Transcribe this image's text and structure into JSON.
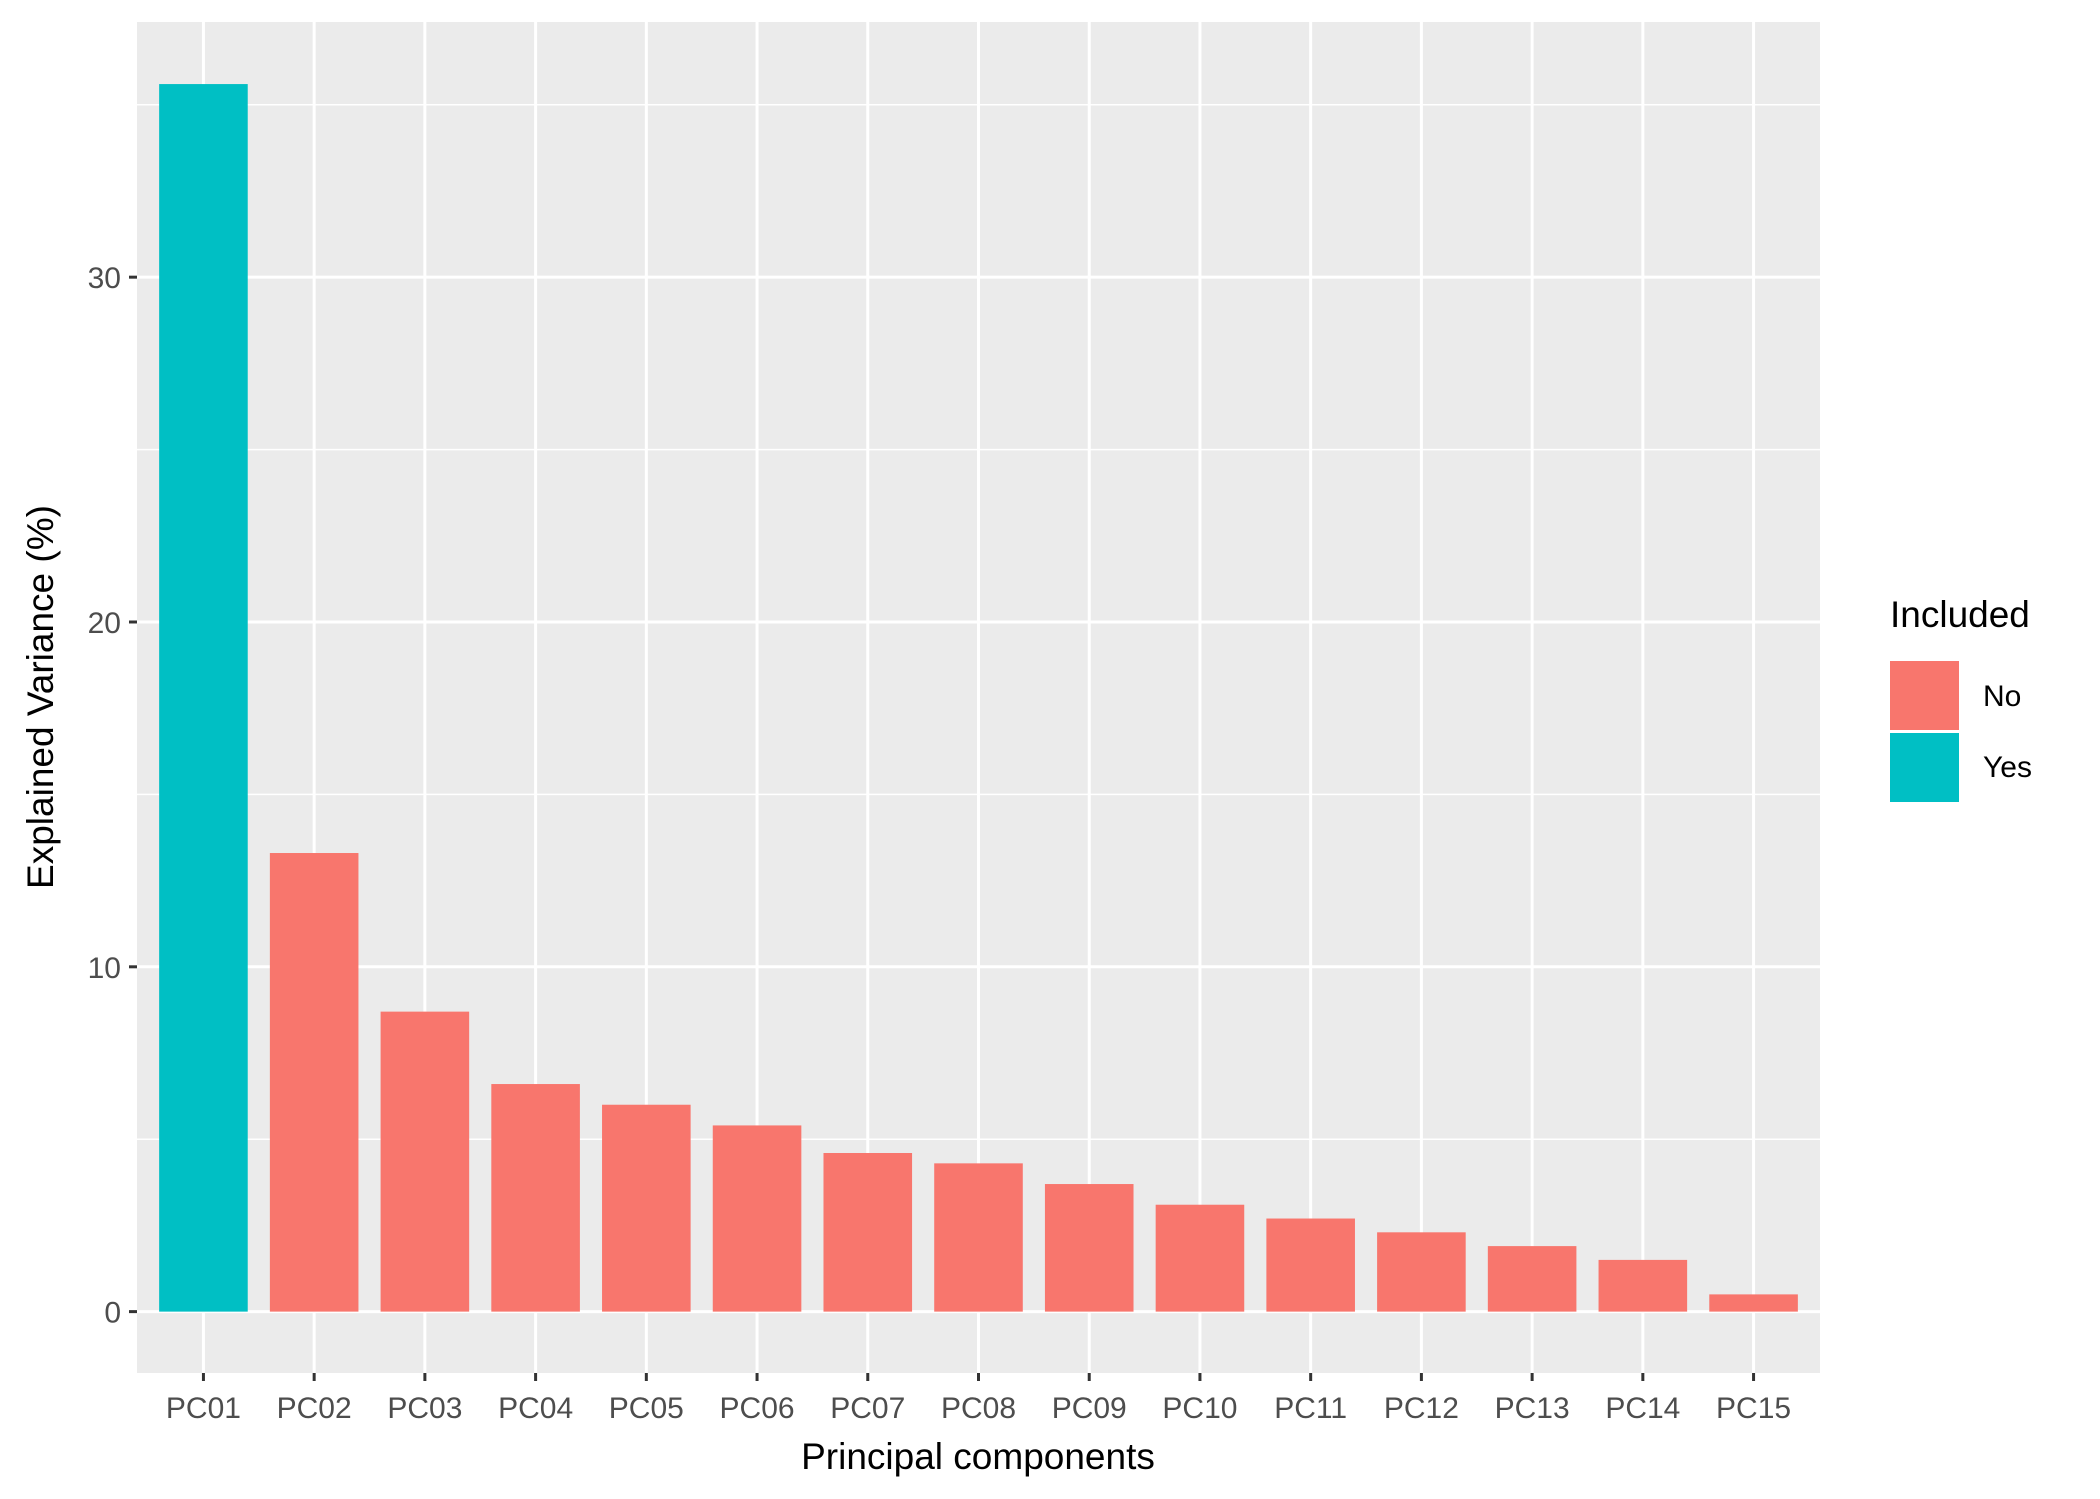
{
  "chart_data": {
    "type": "bar",
    "title": "",
    "xlabel": "Principal components",
    "ylabel": "Explained Variance (%)",
    "categories": [
      "PC01",
      "PC02",
      "PC03",
      "PC04",
      "PC05",
      "PC06",
      "PC07",
      "PC08",
      "PC09",
      "PC10",
      "PC11",
      "PC12",
      "PC13",
      "PC14",
      "PC15"
    ],
    "values": [
      35.6,
      13.3,
      8.7,
      6.6,
      6.0,
      5.4,
      4.6,
      4.3,
      3.7,
      3.1,
      2.7,
      2.3,
      1.9,
      1.5,
      0.5
    ],
    "included": [
      "Yes",
      "No",
      "No",
      "No",
      "No",
      "No",
      "No",
      "No",
      "No",
      "No",
      "No",
      "No",
      "No",
      "No",
      "No"
    ],
    "ylim": [
      -1.78,
      37.4
    ],
    "yticks": [
      0,
      10,
      20,
      30
    ],
    "ytick_labels": [
      "0",
      "10",
      "20",
      "30"
    ],
    "grid": true,
    "legend": {
      "title": "Included",
      "placement": "right",
      "entries": [
        {
          "label": "No",
          "color": "#F8766D"
        },
        {
          "label": "Yes",
          "color": "#00BFC4"
        }
      ]
    },
    "colors": {
      "No": "#F8766D",
      "Yes": "#00BFC4",
      "panel": "#EBEBEB",
      "grid": "#FFFFFF"
    }
  }
}
